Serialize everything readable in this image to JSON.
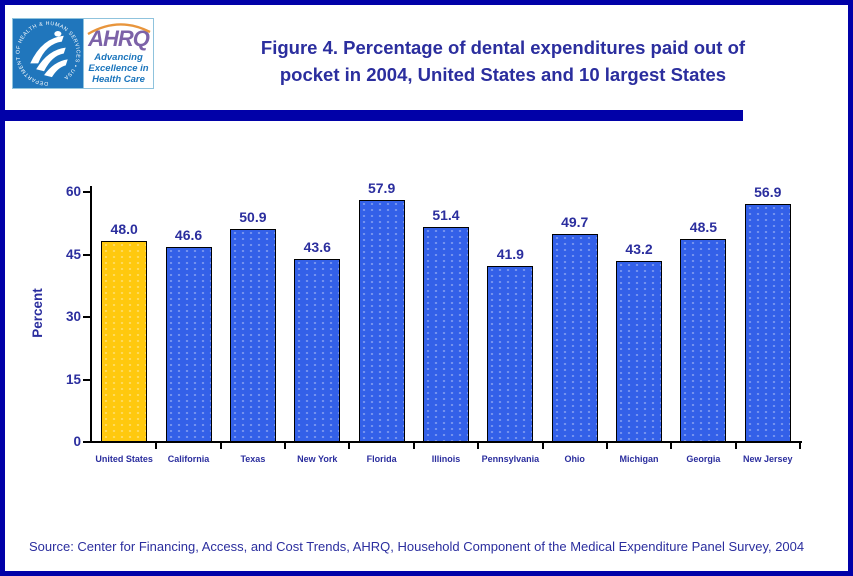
{
  "header": {
    "logo": {
      "seal_text": "DEPARTMENT OF HEALTH & HUMAN SERVICES • USA",
      "ahrq_acronym": "AHRQ",
      "tagline1": "Advancing",
      "tagline2": "Excellence in",
      "tagline3": "Health Care"
    },
    "title_line1": "Figure 4. Percentage of dental expenditures paid out of",
    "title_line2": "pocket in 2004, United States and 10 largest States"
  },
  "chart_data": {
    "type": "bar",
    "categories": [
      "United States",
      "California",
      "Texas",
      "New York",
      "Florida",
      "Illinois",
      "Pennsylvania",
      "Ohio",
      "Michigan",
      "Georgia",
      "New Jersey"
    ],
    "values": [
      48.0,
      46.6,
      50.9,
      43.6,
      57.9,
      51.4,
      41.9,
      49.7,
      43.2,
      48.5,
      56.9
    ],
    "value_labels": [
      "48.0",
      "46.6",
      "50.9",
      "43.6",
      "57.9",
      "51.4",
      "41.9",
      "49.7",
      "43.2",
      "48.5",
      "56.9"
    ],
    "title": "Figure 4. Percentage of dental expenditures paid out of pocket in 2004, United States and 10 largest States",
    "xlabel": "",
    "ylabel": "Percent",
    "yticks": [
      0,
      15,
      30,
      45,
      60
    ],
    "ylim": [
      0,
      60
    ],
    "grid": false,
    "legend": "none",
    "highlight_index": 0,
    "bar_color": "#3360E8",
    "highlight_color": "#FFC90E"
  },
  "footer": {
    "source": "Source: Center for Financing, Access, and Cost Trends, AHRQ, Household Component of the Medical Expenditure Panel Survey, 2004"
  },
  "colors": {
    "frame": "#0101A8",
    "text_navy": "#2B2E9E",
    "hhs_blue": "#2076BC",
    "ahrq_purple": "#7C62A8",
    "tagline_blue": "#1B75BC"
  }
}
